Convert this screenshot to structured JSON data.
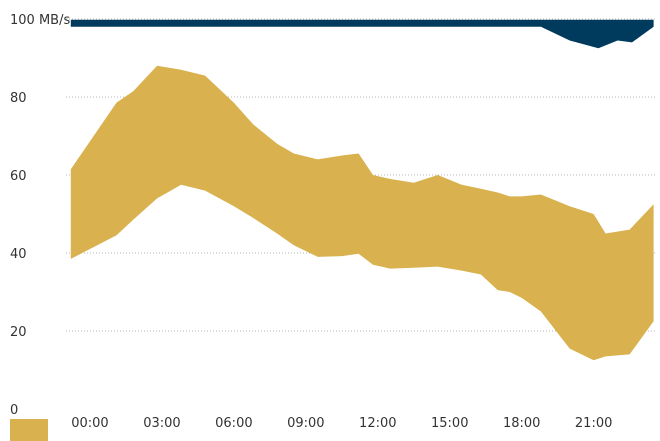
{
  "chart_data": {
    "type": "area",
    "title": "",
    "xlabel": "",
    "ylabel": "",
    "ylim": [
      0,
      100
    ],
    "y_ticks": [
      0,
      20,
      40,
      60,
      80,
      100
    ],
    "y_tick_labels": [
      "0",
      "20",
      "40",
      "60",
      "80",
      "100 MB/s"
    ],
    "xlim": [
      -1.0,
      23.6
    ],
    "x_ticks": [
      0,
      3,
      6,
      9,
      12,
      15,
      18,
      21
    ],
    "x_tick_labels": [
      "00:00",
      "03:00",
      "06:00",
      "09:00",
      "12:00",
      "15:00",
      "18:00",
      "21:00"
    ],
    "grid": "horizontal dotted",
    "legend": "bottom-left",
    "colors": {
      "band": "#d9b24f",
      "top_band": "#003a5d",
      "grid": "#b7b7b7",
      "text": "#333333"
    },
    "series": [
      {
        "color": "#d9b24f",
        "x": [
          -0.8,
          1.1,
          1.8,
          2.8,
          3.8,
          4.8,
          6.0,
          6.8,
          7.8,
          8.5,
          9.5,
          10.5,
          11.2,
          11.8,
          12.5,
          13.5,
          14.5,
          15.5,
          16.3,
          17.0,
          17.5,
          18.0,
          18.8,
          20.0,
          21.0,
          21.5,
          22.5,
          23.5
        ],
        "upper": [
          61.5,
          78.5,
          81.5,
          88.0,
          87.0,
          85.5,
          78.5,
          73.0,
          68.0,
          65.5,
          64.0,
          65.0,
          65.5,
          60.0,
          59.0,
          58.0,
          60.0,
          57.5,
          56.5,
          55.5,
          54.5,
          54.5,
          55.0,
          52.0,
          50.0,
          45.0,
          46.0,
          52.5
        ],
        "lower": [
          38.5,
          44.5,
          48.5,
          54.0,
          57.5,
          56.0,
          52.0,
          49.0,
          45.0,
          42.0,
          39.0,
          39.2,
          39.8,
          37.0,
          36.0,
          36.2,
          36.5,
          35.5,
          34.5,
          30.5,
          30.0,
          28.5,
          25.0,
          15.5,
          12.5,
          13.5,
          14.0,
          22.5
        ]
      },
      {
        "color": "#003a5d",
        "x": [
          -0.8,
          18.8,
          20.0,
          21.2,
          22.0,
          22.6,
          23.5
        ],
        "upper": [
          99.8,
          99.8,
          99.8,
          99.8,
          99.8,
          99.8,
          99.8
        ],
        "lower": [
          98.0,
          98.0,
          94.5,
          92.5,
          94.5,
          94.0,
          98.0
        ]
      }
    ]
  }
}
